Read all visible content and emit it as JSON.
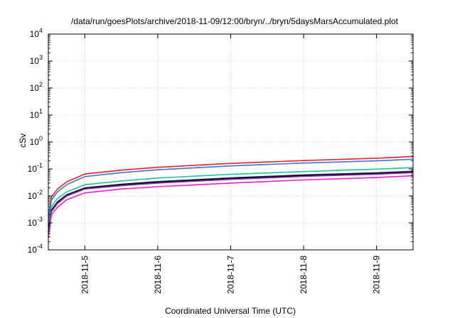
{
  "chart_data": {
    "type": "line",
    "title": "/data/run/goesPlots/archive/2018-11-09/12:00/bryn/../bryn/5daysMarsAccumulated.plot",
    "xlabel": "Coordinated Universal Time (UTC)",
    "ylabel": "cSv",
    "y_scale": "log",
    "ylim": [
      0.0001,
      10000
    ],
    "y_tick_mantissa": "10",
    "y_tick_exponents": [
      "-4",
      "-3",
      "-2",
      "-1",
      "0",
      "1",
      "2",
      "3",
      "4"
    ],
    "xlim": [
      "2018-11-04 12:00",
      "2018-11-09 12:00"
    ],
    "x_ticks": [
      "2018-11-5",
      "2018-11-6",
      "2018-11-7",
      "2018-11-8",
      "2018-11-9"
    ],
    "x_tick_dates": [
      "2018-11-05 00:00",
      "2018-11-06 00:00",
      "2018-11-07 00:00",
      "2018-11-08 00:00",
      "2018-11-09 00:00"
    ],
    "grid": true,
    "legend": "none",
    "series": [
      {
        "color": "#e8202a",
        "x": [
          "2018-11-04 12:00",
          "2018-11-04 13:00",
          "2018-11-04 15:00",
          "2018-11-04 18:00",
          "2018-11-05 00:00",
          "2018-11-05 12:00",
          "2018-11-06 00:00",
          "2018-11-07 00:00",
          "2018-11-08 00:00",
          "2018-11-09 00:00",
          "2018-11-09 12:00"
        ],
        "y": [
          0.0015,
          0.009,
          0.018,
          0.033,
          0.065,
          0.09,
          0.115,
          0.16,
          0.205,
          0.25,
          0.29
        ]
      },
      {
        "color": "#3a78d8",
        "x": [
          "2018-11-04 12:00",
          "2018-11-04 13:00",
          "2018-11-04 15:00",
          "2018-11-04 18:00",
          "2018-11-05 00:00",
          "2018-11-05 12:00",
          "2018-11-06 00:00",
          "2018-11-07 00:00",
          "2018-11-08 00:00",
          "2018-11-09 00:00",
          "2018-11-09 12:00"
        ],
        "y": [
          0.0012,
          0.007,
          0.014,
          0.026,
          0.052,
          0.073,
          0.093,
          0.13,
          0.165,
          0.2,
          0.23
        ]
      },
      {
        "color": "#20c49a",
        "x": [
          "2018-11-04 12:00",
          "2018-11-04 13:00",
          "2018-11-04 15:00",
          "2018-11-04 18:00",
          "2018-11-05 00:00",
          "2018-11-05 12:00",
          "2018-11-06 00:00",
          "2018-11-07 00:00",
          "2018-11-08 00:00",
          "2018-11-09 00:00",
          "2018-11-09 12:00"
        ],
        "y": [
          0.0007,
          0.004,
          0.008,
          0.014,
          0.026,
          0.036,
          0.046,
          0.063,
          0.08,
          0.098,
          0.112
        ]
      },
      {
        "color": "#2a2a6a",
        "x": [
          "2018-11-04 12:00",
          "2018-11-04 13:00",
          "2018-11-04 15:00",
          "2018-11-04 18:00",
          "2018-11-05 00:00",
          "2018-11-05 12:00",
          "2018-11-06 00:00",
          "2018-11-07 00:00",
          "2018-11-08 00:00",
          "2018-11-09 00:00",
          "2018-11-09 12:00"
        ],
        "y": [
          0.0005,
          0.003,
          0.006,
          0.011,
          0.02,
          0.027,
          0.034,
          0.047,
          0.06,
          0.072,
          0.082
        ]
      },
      {
        "color": "#000000",
        "x": [
          "2018-11-04 12:00",
          "2018-11-04 13:00",
          "2018-11-04 15:00",
          "2018-11-04 18:00",
          "2018-11-05 00:00",
          "2018-11-05 12:00",
          "2018-11-06 00:00",
          "2018-11-07 00:00",
          "2018-11-08 00:00",
          "2018-11-09 00:00",
          "2018-11-09 12:00"
        ],
        "y": [
          0.00048,
          0.0028,
          0.0056,
          0.0105,
          0.019,
          0.026,
          0.032,
          0.044,
          0.057,
          0.068,
          0.077
        ]
      },
      {
        "color": "#8a2aa8",
        "x": [
          "2018-11-04 12:00",
          "2018-11-04 13:00",
          "2018-11-04 15:00",
          "2018-11-04 18:00",
          "2018-11-05 00:00",
          "2018-11-05 12:00",
          "2018-11-06 00:00",
          "2018-11-07 00:00",
          "2018-11-08 00:00",
          "2018-11-09 00:00",
          "2018-11-09 12:00"
        ],
        "y": [
          0.00045,
          0.0026,
          0.0052,
          0.0098,
          0.018,
          0.024,
          0.03,
          0.041,
          0.053,
          0.064,
          0.073
        ]
      },
      {
        "color": "#f020c8",
        "x": [
          "2018-11-04 12:00",
          "2018-11-04 13:00",
          "2018-11-04 15:00",
          "2018-11-04 18:00",
          "2018-11-05 00:00",
          "2018-11-05 12:00",
          "2018-11-06 00:00",
          "2018-11-07 00:00",
          "2018-11-08 00:00",
          "2018-11-09 00:00",
          "2018-11-09 12:00"
        ],
        "y": [
          0.00028,
          0.002,
          0.0038,
          0.0072,
          0.013,
          0.018,
          0.022,
          0.03,
          0.039,
          0.048,
          0.056
        ]
      }
    ]
  }
}
